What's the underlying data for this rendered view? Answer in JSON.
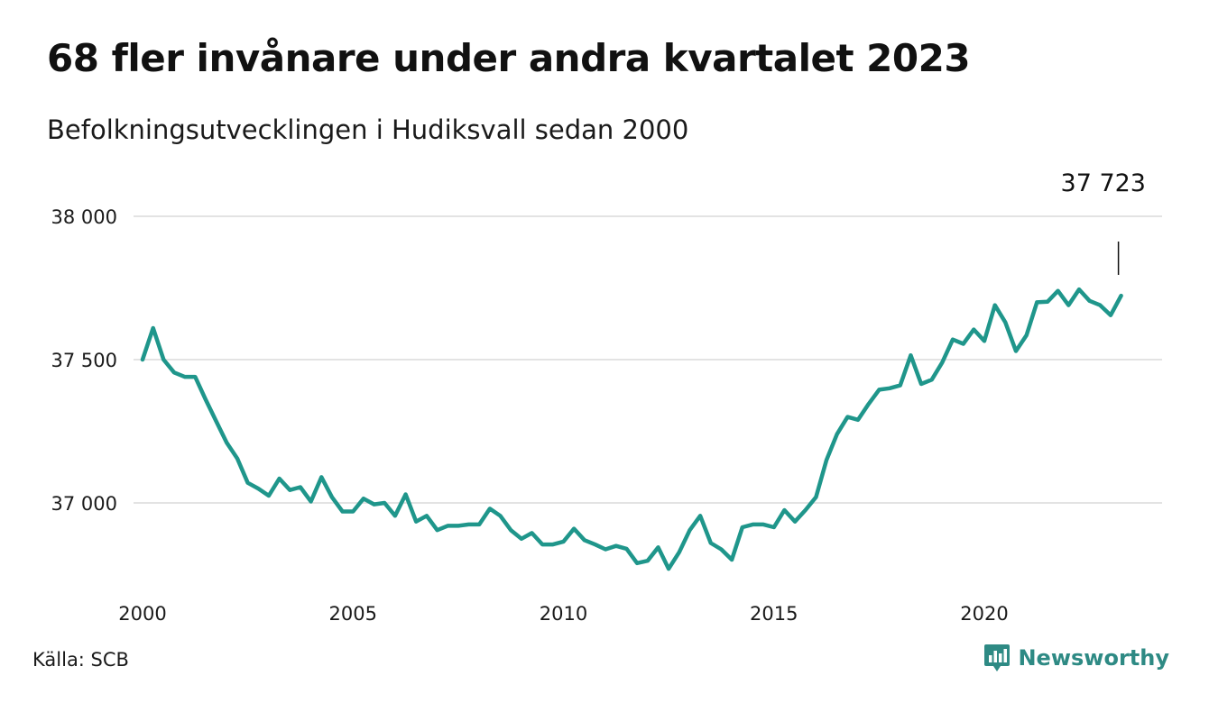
{
  "title": "68 fler invånare under andra kvartalet 2023",
  "subtitle": "Befolkningsutvecklingen i Hudiksvall sedan 2000",
  "source": "Källa: SCB",
  "logo_text": "Newsworthy",
  "logo_icon": "newsworthy-chart-bubble-icon",
  "colors": {
    "line": "#1f968b",
    "grid": "#e3e3e3",
    "logo": "#2e8a84"
  },
  "chart_data": {
    "type": "line",
    "title": "68 fler invånare under andra kvartalet 2023",
    "subtitle": "Befolkningsutvecklingen i Hudiksvall sedan 2000",
    "xlabel": "",
    "ylabel": "",
    "frequency": "quarterly",
    "xlim": [
      2000,
      2023.75
    ],
    "ylim": [
      36750,
      38100
    ],
    "x_ticks": [
      {
        "value": 2000,
        "label": "2000"
      },
      {
        "value": 2005,
        "label": "2005"
      },
      {
        "value": 2010,
        "label": "2010"
      },
      {
        "value": 2015,
        "label": "2015"
      },
      {
        "value": 2020,
        "label": "2020"
      }
    ],
    "y_ticks": [
      {
        "value": 37000,
        "label": "37 000"
      },
      {
        "value": 37500,
        "label": "37 500"
      },
      {
        "value": 38000,
        "label": "38 000"
      }
    ],
    "grid": true,
    "annotation": {
      "label": "37 723",
      "x": "2023 Q2",
      "value": 37723
    },
    "series": [
      {
        "values": [
          {
            "x": "2000 Q1",
            "y": 37500
          },
          {
            "x": "2000 Q2",
            "y": 37610
          },
          {
            "x": "2000 Q3",
            "y": 37500
          },
          {
            "x": "2000 Q4",
            "y": 37455
          },
          {
            "x": "2001 Q1",
            "y": 37440
          },
          {
            "x": "2001 Q2",
            "y": 37440
          },
          {
            "x": "2001 Q3",
            "y": 37360
          },
          {
            "x": "2001 Q4",
            "y": 37285
          },
          {
            "x": "2002 Q1",
            "y": 37210
          },
          {
            "x": "2002 Q2",
            "y": 37155
          },
          {
            "x": "2002 Q3",
            "y": 37070
          },
          {
            "x": "2002 Q4",
            "y": 37050
          },
          {
            "x": "2003 Q1",
            "y": 37025
          },
          {
            "x": "2003 Q2",
            "y": 37085
          },
          {
            "x": "2003 Q3",
            "y": 37045
          },
          {
            "x": "2003 Q4",
            "y": 37055
          },
          {
            "x": "2004 Q1",
            "y": 37005
          },
          {
            "x": "2004 Q2",
            "y": 37090
          },
          {
            "x": "2004 Q3",
            "y": 37020
          },
          {
            "x": "2004 Q4",
            "y": 36970
          },
          {
            "x": "2005 Q1",
            "y": 36970
          },
          {
            "x": "2005 Q2",
            "y": 37015
          },
          {
            "x": "2005 Q3",
            "y": 36995
          },
          {
            "x": "2005 Q4",
            "y": 37000
          },
          {
            "x": "2006 Q1",
            "y": 36955
          },
          {
            "x": "2006 Q2",
            "y": 37030
          },
          {
            "x": "2006 Q3",
            "y": 36935
          },
          {
            "x": "2006 Q4",
            "y": 36955
          },
          {
            "x": "2007 Q1",
            "y": 36905
          },
          {
            "x": "2007 Q2",
            "y": 36920
          },
          {
            "x": "2007 Q3",
            "y": 36920
          },
          {
            "x": "2007 Q4",
            "y": 36925
          },
          {
            "x": "2008 Q1",
            "y": 36925
          },
          {
            "x": "2008 Q2",
            "y": 36980
          },
          {
            "x": "2008 Q3",
            "y": 36955
          },
          {
            "x": "2008 Q4",
            "y": 36905
          },
          {
            "x": "2009 Q1",
            "y": 36875
          },
          {
            "x": "2009 Q2",
            "y": 36895
          },
          {
            "x": "2009 Q3",
            "y": 36855
          },
          {
            "x": "2009 Q4",
            "y": 36855
          },
          {
            "x": "2010 Q1",
            "y": 36865
          },
          {
            "x": "2010 Q2",
            "y": 36910
          },
          {
            "x": "2010 Q3",
            "y": 36870
          },
          {
            "x": "2010 Q4",
            "y": 36855
          },
          {
            "x": "2011 Q1",
            "y": 36838
          },
          {
            "x": "2011 Q2",
            "y": 36850
          },
          {
            "x": "2011 Q3",
            "y": 36840
          },
          {
            "x": "2011 Q4",
            "y": 36790
          },
          {
            "x": "2012 Q1",
            "y": 36798
          },
          {
            "x": "2012 Q2",
            "y": 36845
          },
          {
            "x": "2012 Q3",
            "y": 36770
          },
          {
            "x": "2012 Q4",
            "y": 36828
          },
          {
            "x": "2013 Q1",
            "y": 36905
          },
          {
            "x": "2013 Q2",
            "y": 36955
          },
          {
            "x": "2013 Q3",
            "y": 36860
          },
          {
            "x": "2013 Q4",
            "y": 36838
          },
          {
            "x": "2014 Q1",
            "y": 36802
          },
          {
            "x": "2014 Q2",
            "y": 36915
          },
          {
            "x": "2014 Q3",
            "y": 36925
          },
          {
            "x": "2014 Q4",
            "y": 36925
          },
          {
            "x": "2015 Q1",
            "y": 36915
          },
          {
            "x": "2015 Q2",
            "y": 36975
          },
          {
            "x": "2015 Q3",
            "y": 36935
          },
          {
            "x": "2015 Q4",
            "y": 36975
          },
          {
            "x": "2016 Q1",
            "y": 37020
          },
          {
            "x": "2016 Q2",
            "y": 37150
          },
          {
            "x": "2016 Q3",
            "y": 37240
          },
          {
            "x": "2016 Q4",
            "y": 37300
          },
          {
            "x": "2017 Q1",
            "y": 37290
          },
          {
            "x": "2017 Q2",
            "y": 37345
          },
          {
            "x": "2017 Q3",
            "y": 37395
          },
          {
            "x": "2017 Q4",
            "y": 37400
          },
          {
            "x": "2018 Q1",
            "y": 37410
          },
          {
            "x": "2018 Q2",
            "y": 37515
          },
          {
            "x": "2018 Q3",
            "y": 37415
          },
          {
            "x": "2018 Q4",
            "y": 37430
          },
          {
            "x": "2019 Q1",
            "y": 37490
          },
          {
            "x": "2019 Q2",
            "y": 37570
          },
          {
            "x": "2019 Q3",
            "y": 37555
          },
          {
            "x": "2019 Q4",
            "y": 37605
          },
          {
            "x": "2020 Q1",
            "y": 37565
          },
          {
            "x": "2020 Q2",
            "y": 37690
          },
          {
            "x": "2020 Q3",
            "y": 37630
          },
          {
            "x": "2020 Q4",
            "y": 37530
          },
          {
            "x": "2021 Q1",
            "y": 37585
          },
          {
            "x": "2021 Q2",
            "y": 37700
          },
          {
            "x": "2021 Q3",
            "y": 37702
          },
          {
            "x": "2021 Q4",
            "y": 37740
          },
          {
            "x": "2022 Q1",
            "y": 37690
          },
          {
            "x": "2022 Q2",
            "y": 37745
          },
          {
            "x": "2022 Q3",
            "y": 37705
          },
          {
            "x": "2022 Q4",
            "y": 37690
          },
          {
            "x": "2023 Q1",
            "y": 37655
          },
          {
            "x": "2023 Q2",
            "y": 37723
          }
        ]
      }
    ]
  }
}
